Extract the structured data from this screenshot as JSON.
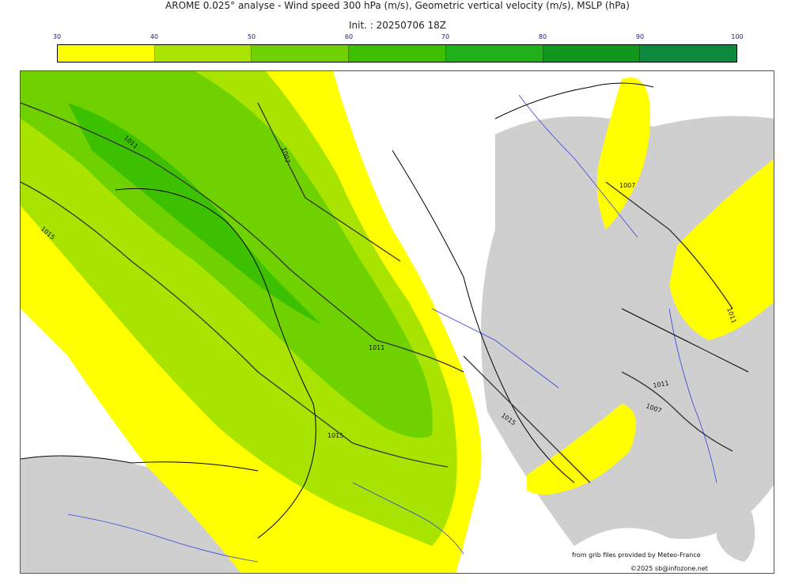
{
  "header": {
    "title": "AROME 0.025° analyse - Wind speed 300 hPa (m/s), Geometric vertical velocity (m/s), MSLP (hPa)",
    "init": "Init. : 20250706 18Z"
  },
  "colorbar": {
    "ticks": [
      "30",
      "40",
      "50",
      "60",
      "70",
      "80",
      "90",
      "100"
    ],
    "colors": [
      "#ffff00",
      "#a8e400",
      "#6fd200",
      "#3cc000",
      "#1fb01a",
      "#10981e",
      "#0d8a3e",
      "#0b7550"
    ]
  },
  "map": {
    "isobars": [
      "1015",
      "1011",
      "1007",
      "1011",
      "1007",
      "1015",
      "1011",
      "1015",
      "1011",
      "1007"
    ],
    "colors": {
      "wind30": "#ffff00",
      "wind40": "#a8e400",
      "wind50": "#6fd200",
      "wind60": "#3cc000",
      "relief": "#cfcfcf",
      "river": "#3344dd",
      "coast": "#000000"
    }
  },
  "credits": {
    "source": "from grib files provided by  Meteo-France",
    "copyright": "©2025 sb@infozone.net"
  }
}
